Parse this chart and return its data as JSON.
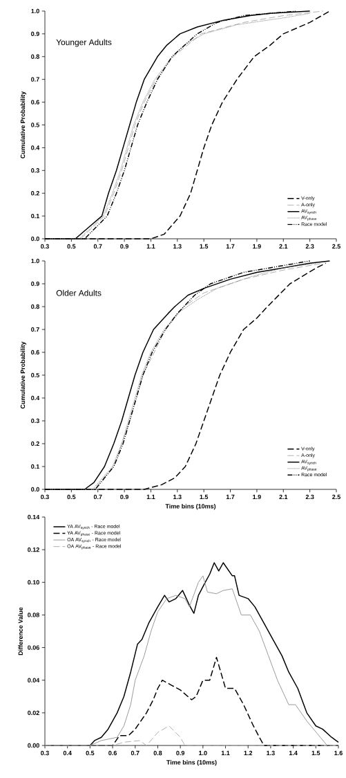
{
  "chart_data": [
    {
      "type": "line",
      "title": "Younger Adults",
      "ylabel": "Cumulative Probability",
      "legend": "bottom right",
      "grid": false,
      "xlim": [
        0.3,
        2.5
      ],
      "ylim": [
        0,
        1
      ],
      "xticks": [
        0.3,
        0.5,
        0.7,
        0.9,
        1.1,
        1.3,
        1.5,
        1.7,
        1.9,
        2.1,
        2.3,
        2.5
      ],
      "yticks": [
        {
          "value": 0,
          "label": "0.0"
        },
        0.1,
        0.2,
        0.3,
        0.4,
        0.5,
        0.6,
        0.7,
        0.8,
        0.9,
        {
          "value": 1,
          "label": "1.0"
        }
      ],
      "series": [
        {
          "name": "V-only",
          "color": "#000000",
          "line_style": "dashed",
          "x": [
            0.3,
            1.1,
            1.2,
            1.32,
            1.4,
            1.45,
            1.5,
            1.56,
            1.64,
            1.75,
            1.88,
            2.0,
            2.1,
            2.3,
            2.45
          ],
          "values": [
            0,
            0,
            0.02,
            0.1,
            0.2,
            0.3,
            0.4,
            0.5,
            0.6,
            0.7,
            0.8,
            0.85,
            0.9,
            0.95,
            1.0
          ]
        },
        {
          "name": "A-only",
          "color": "#b0b0b0",
          "line_style": "dashed",
          "x": [
            0.3,
            0.57,
            0.75,
            0.82,
            0.88,
            0.93,
            0.98,
            1.05,
            1.14,
            1.27,
            1.48,
            1.8,
            2.1,
            2.4
          ],
          "values": [
            0,
            0,
            0.1,
            0.2,
            0.3,
            0.4,
            0.5,
            0.6,
            0.7,
            0.8,
            0.9,
            0.95,
            0.98,
            1.0
          ]
        },
        {
          "name": "AV$_{synch}$",
          "color": "#000000",
          "line_style": "solid",
          "x": [
            0.3,
            0.53,
            0.63,
            0.73,
            0.78,
            0.84,
            0.89,
            0.94,
            0.99,
            1.05,
            1.15,
            1.22,
            1.32,
            1.45,
            1.65,
            1.85,
            2.0,
            2.3
          ],
          "values": [
            0,
            0,
            0.05,
            0.1,
            0.2,
            0.3,
            0.4,
            0.5,
            0.6,
            0.7,
            0.8,
            0.85,
            0.9,
            0.93,
            0.96,
            0.98,
            0.99,
            1.0
          ]
        },
        {
          "name": "AV$_{phase}$",
          "color": "#808080",
          "line_style": "dotted",
          "x": [
            0.3,
            0.56,
            0.74,
            0.81,
            0.87,
            0.92,
            0.97,
            1.04,
            1.13,
            1.26,
            1.35,
            1.5,
            1.75,
            2.1,
            2.3
          ],
          "values": [
            0,
            0,
            0.1,
            0.2,
            0.3,
            0.4,
            0.5,
            0.6,
            0.7,
            0.8,
            0.85,
            0.9,
            0.94,
            0.97,
            0.99
          ]
        },
        {
          "name": "Race model",
          "color": "#000000",
          "line_style": "dashdotdotted",
          "x": [
            0.3,
            0.6,
            0.77,
            0.84,
            0.9,
            0.95,
            1.0,
            1.07,
            1.15,
            1.26,
            1.45,
            1.6,
            1.8,
            2.2
          ],
          "values": [
            0,
            0,
            0.1,
            0.2,
            0.3,
            0.4,
            0.5,
            0.6,
            0.7,
            0.8,
            0.9,
            0.95,
            0.98,
            1.0
          ]
        }
      ]
    },
    {
      "type": "line",
      "title": "Older Adults",
      "ylabel": "Cumulative Probability",
      "xlabel": "Time bins (10ms)",
      "legend": "bottom right",
      "grid": false,
      "xlim": [
        0.3,
        2.5
      ],
      "ylim": [
        0,
        1
      ],
      "xticks": [
        0.3,
        0.5,
        0.7,
        0.9,
        1.1,
        1.3,
        1.5,
        1.7,
        1.9,
        2.1,
        2.3,
        2.5
      ],
      "yticks": [
        {
          "value": 0,
          "label": "0.0"
        },
        0.1,
        0.2,
        0.3,
        0.4,
        0.5,
        0.6,
        0.7,
        0.8,
        0.9,
        {
          "value": 1,
          "label": "1.0"
        }
      ],
      "series": [
        {
          "name": "V-only",
          "color": "#000000",
          "line_style": "dashed",
          "x": [
            0.3,
            1.05,
            1.18,
            1.28,
            1.36,
            1.44,
            1.5,
            1.56,
            1.62,
            1.7,
            1.8,
            1.9,
            1.98,
            2.15,
            2.35,
            2.42
          ],
          "values": [
            0,
            0,
            0.02,
            0.05,
            0.1,
            0.2,
            0.3,
            0.4,
            0.5,
            0.6,
            0.7,
            0.75,
            0.8,
            0.9,
            0.97,
            0.99
          ]
        },
        {
          "name": "A-only",
          "color": "#b0b0b0",
          "line_style": "dashed",
          "x": [
            0.3,
            0.67,
            0.82,
            0.94,
            1.04,
            1.21,
            1.35,
            1.5,
            1.8,
            2.1,
            2.4
          ],
          "values": [
            0,
            0,
            0.1,
            0.3,
            0.5,
            0.7,
            0.8,
            0.86,
            0.92,
            0.96,
            0.99
          ]
        },
        {
          "name": "AV$_{synch}$",
          "color": "#000000",
          "line_style": "solid",
          "x": [
            0.3,
            0.6,
            0.67,
            0.75,
            0.82,
            0.88,
            0.93,
            0.98,
            1.04,
            1.12,
            1.23,
            1.28,
            1.38,
            1.5,
            1.7,
            1.9,
            2.1,
            2.3,
            2.45
          ],
          "values": [
            0,
            0,
            0.03,
            0.1,
            0.2,
            0.3,
            0.4,
            0.5,
            0.6,
            0.7,
            0.77,
            0.8,
            0.85,
            0.88,
            0.92,
            0.95,
            0.97,
            0.99,
            1.0
          ]
        },
        {
          "name": "AV$_{phase}$",
          "color": "#808080",
          "line_style": "dotted",
          "x": [
            0.3,
            0.66,
            0.81,
            0.88,
            0.93,
            0.98,
            1.03,
            1.1,
            1.2,
            1.3,
            1.45,
            1.6,
            1.85,
            2.1,
            2.35
          ],
          "values": [
            0,
            0,
            0.1,
            0.2,
            0.3,
            0.4,
            0.5,
            0.6,
            0.7,
            0.77,
            0.83,
            0.88,
            0.93,
            0.97,
            0.99
          ]
        },
        {
          "name": "Race model",
          "color": "#000000",
          "line_style": "dashdotdotted",
          "x": [
            0.3,
            0.68,
            0.82,
            0.89,
            0.94,
            0.99,
            1.04,
            1.11,
            1.21,
            1.3,
            1.43,
            1.55,
            1.8,
            2.1,
            2.3
          ],
          "values": [
            0,
            0,
            0.1,
            0.2,
            0.3,
            0.4,
            0.5,
            0.6,
            0.7,
            0.77,
            0.85,
            0.9,
            0.95,
            0.98,
            1.0
          ]
        }
      ]
    },
    {
      "type": "line",
      "ylabel": "Difference Value",
      "xlabel": "Time bins (10ms)",
      "legend": "top left",
      "grid": false,
      "xlim": [
        0.3,
        1.6
      ],
      "ylim": [
        0,
        0.14
      ],
      "xticks": [
        0.3,
        0.4,
        0.5,
        0.6,
        0.7,
        0.8,
        0.9,
        {
          "value": 1,
          "label": "1.0"
        },
        1.1,
        1.2,
        1.3,
        1.4,
        1.5,
        1.6
      ],
      "yticks": [
        {
          "value": 0,
          "label": "0.00"
        },
        0.02,
        0.04,
        0.06,
        0.08,
        {
          "value": 0.1,
          "label": "0.10"
        },
        0.12,
        0.14
      ],
      "series": [
        {
          "name": "YA  AV$_{synch}$ - Race model",
          "color": "#000000",
          "line_style": "solid",
          "x": [
            0.3,
            0.5,
            0.52,
            0.55,
            0.58,
            0.62,
            0.65,
            0.68,
            0.71,
            0.73,
            0.76,
            0.8,
            0.83,
            0.85,
            0.88,
            0.91,
            0.94,
            0.96,
            0.98,
            1.01,
            1.03,
            1.05,
            1.07,
            1.09,
            1.13,
            1.14,
            1.16,
            1.2,
            1.23,
            1.27,
            1.31,
            1.35,
            1.38,
            1.42,
            1.46,
            1.5,
            1.53,
            1.57,
            1.6
          ],
          "values": [
            0,
            0,
            0.003,
            0.005,
            0.01,
            0.02,
            0.03,
            0.045,
            0.062,
            0.065,
            0.075,
            0.085,
            0.092,
            0.088,
            0.09,
            0.095,
            0.086,
            0.081,
            0.092,
            0.1,
            0.105,
            0.112,
            0.107,
            0.112,
            0.104,
            0.104,
            0.092,
            0.09,
            0.085,
            0.075,
            0.065,
            0.055,
            0.045,
            0.035,
            0.02,
            0.012,
            0.01,
            0.005,
            0.002
          ]
        },
        {
          "name": "YA  AV$_{phase}$ - Race model",
          "color": "#000000",
          "line_style": "dashed",
          "x": [
            0.3,
            0.6,
            0.63,
            0.67,
            0.7,
            0.75,
            0.78,
            0.8,
            0.82,
            0.86,
            0.9,
            0.95,
            0.97,
            1.0,
            1.03,
            1.06,
            1.1,
            1.14,
            1.18,
            1.22,
            1.25,
            1.27,
            1.6
          ],
          "values": [
            0,
            0,
            0.006,
            0.006,
            0.01,
            0.02,
            0.028,
            0.035,
            0.04,
            0.037,
            0.034,
            0.028,
            0.03,
            0.04,
            0.04,
            0.054,
            0.035,
            0.035,
            0.025,
            0.013,
            0.005,
            0,
            0
          ]
        },
        {
          "name": "OA  AV$_{synch}$ - Race model",
          "color": "#9a9a9a",
          "line_style": "solid",
          "x": [
            0.3,
            0.5,
            0.55,
            0.62,
            0.65,
            0.68,
            0.7,
            0.74,
            0.77,
            0.8,
            0.84,
            0.88,
            0.92,
            0.94,
            0.98,
            1.0,
            1.02,
            1.06,
            1.09,
            1.13,
            1.17,
            1.21,
            1.25,
            1.29,
            1.33,
            1.38,
            1.41,
            1.46,
            1.52,
            1.55,
            1.6
          ],
          "values": [
            0,
            0,
            0.003,
            0.005,
            0.012,
            0.025,
            0.04,
            0.055,
            0.07,
            0.082,
            0.09,
            0.092,
            0.09,
            0.085,
            0.1,
            0.104,
            0.094,
            0.093,
            0.095,
            0.096,
            0.08,
            0.08,
            0.07,
            0.055,
            0.04,
            0.025,
            0.025,
            0.015,
            0.005,
            0,
            0
          ]
        },
        {
          "name": "OA  AV$_{phase}$ - Race model",
          "color": "#b0b0b0",
          "line_style": "dashed",
          "x": [
            0.3,
            0.6,
            0.65,
            0.72,
            0.75,
            0.8,
            0.85,
            0.9,
            0.92,
            1.6
          ],
          "values": [
            0,
            0,
            0.002,
            0.003,
            0,
            0.008,
            0.012,
            0.005,
            0,
            0
          ]
        }
      ]
    }
  ]
}
